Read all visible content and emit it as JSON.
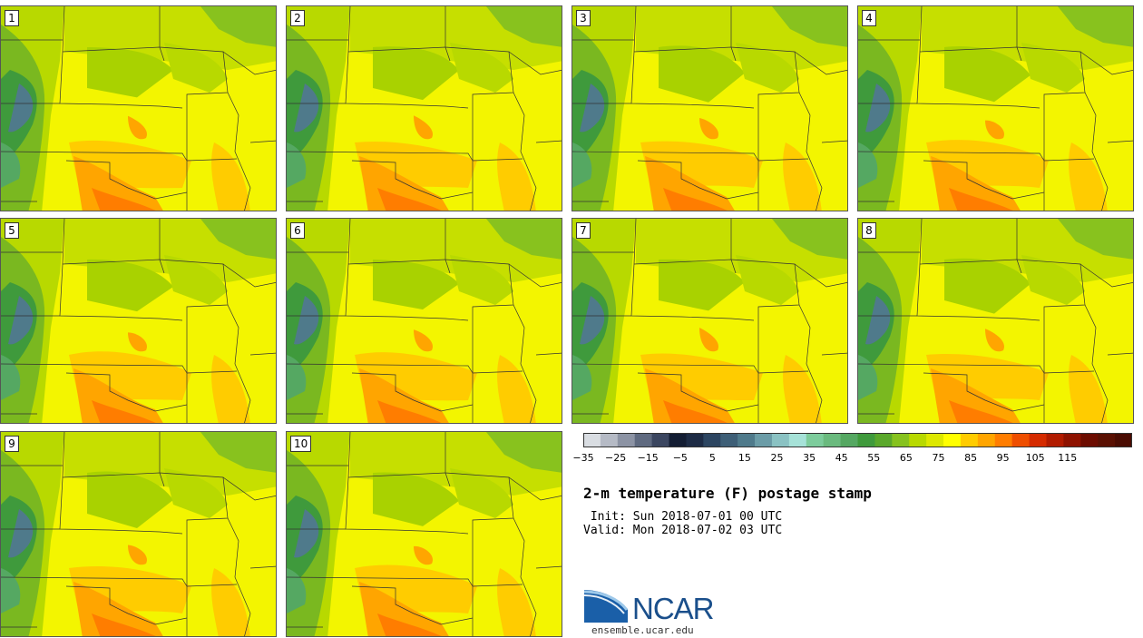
{
  "title": "2-m temperature (F) postage stamp",
  "init_text": " Init: Sun 2018-07-01 00 UTC",
  "valid_text": "Valid: Mon 2018-07-02 03 UTC",
  "logo": {
    "name": "NCAR",
    "site": "ensemble.ucar.edu"
  },
  "members": [
    {
      "label": "1"
    },
    {
      "label": "2"
    },
    {
      "label": "3"
    },
    {
      "label": "4"
    },
    {
      "label": "5"
    },
    {
      "label": "6"
    },
    {
      "label": "7"
    },
    {
      "label": "8"
    },
    {
      "label": "9"
    },
    {
      "label": "10"
    }
  ],
  "colorbar": {
    "min": -35,
    "max": 125,
    "step": 5,
    "tick_labels": [
      "-35",
      "-25",
      "-15",
      "-5",
      "5",
      "15",
      "25",
      "35",
      "45",
      "55",
      "65",
      "75",
      "85",
      "95",
      "105",
      "115"
    ],
    "colors": [
      "#d9dde2",
      "#b5bac5",
      "#8c93a4",
      "#5f6a80",
      "#3b4660",
      "#131d33",
      "#1d2b45",
      "#2c4561",
      "#3e5f77",
      "#4f7a8b",
      "#6b9ca7",
      "#8ac2c3",
      "#a6e2d8",
      "#7dcc9c",
      "#6aba7e",
      "#55a862",
      "#3f9a3c",
      "#5aa82b",
      "#86c21e",
      "#b8d900",
      "#dde800",
      "#ffff00",
      "#ffcc00",
      "#ffa500",
      "#ff7d00",
      "#ee4e00",
      "#d52b00",
      "#b11b00",
      "#8e1200",
      "#6c0c00",
      "#5a1002",
      "#4a0c02"
    ]
  }
}
